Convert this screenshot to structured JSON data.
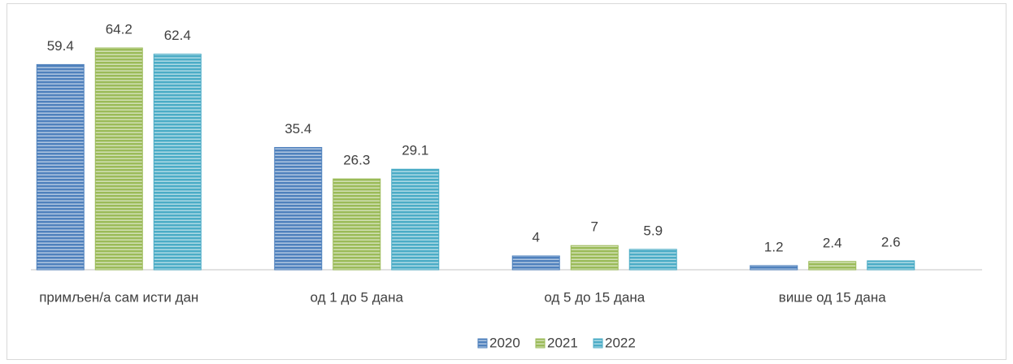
{
  "chart_data": {
    "type": "bar",
    "categories": [
      "примљен/а сам исти дан",
      "од 1 до 5 дана",
      "од 5 до 15 дана",
      "више од 15 дана"
    ],
    "series": [
      {
        "name": "2020",
        "color": "#4f81bd",
        "values": [
          59.4,
          35.4,
          4,
          1.2
        ]
      },
      {
        "name": "2021",
        "color": "#9bbb59",
        "values": [
          64.2,
          26.3,
          7,
          2.4
        ]
      },
      {
        "name": "2022",
        "color": "#4bacc6",
        "values": [
          62.4,
          29.1,
          5.9,
          2.6
        ]
      }
    ]
  }
}
